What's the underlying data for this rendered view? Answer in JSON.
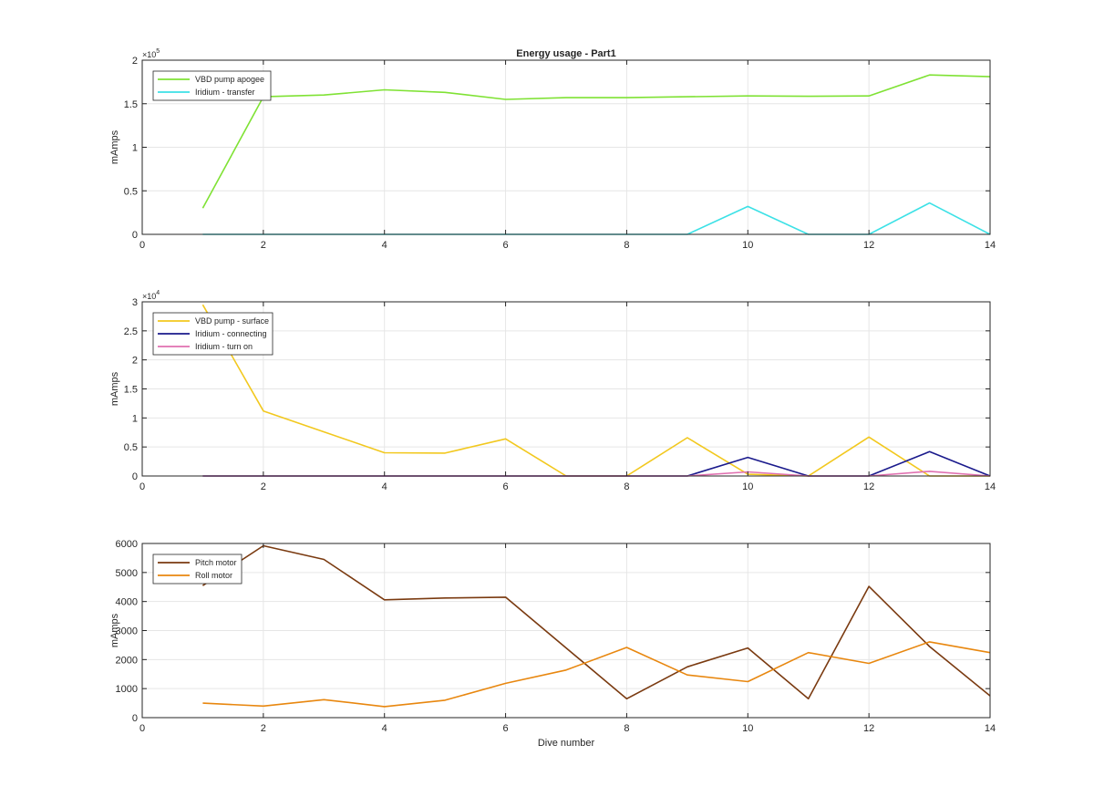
{
  "figure": {
    "title": "Energy usage - Part1",
    "xlabel": "Dive number"
  },
  "chart_data": [
    {
      "type": "line",
      "title": "Energy usage - Part1",
      "xlabel": "",
      "ylabel": "mAmps",
      "xlim": [
        0,
        14
      ],
      "ylim": [
        0,
        200000
      ],
      "xticks": [
        0,
        2,
        4,
        6,
        8,
        10,
        12,
        14
      ],
      "yticks": [
        0,
        50000,
        100000,
        150000,
        200000
      ],
      "ytick_labels": [
        "0",
        "0.5",
        "1",
        "1.5",
        "2"
      ],
      "exponent_label": "×10",
      "exponent_power": "5",
      "grid": true,
      "legend_position": "top-left",
      "x": [
        1,
        2,
        3,
        4,
        5,
        6,
        7,
        8,
        9,
        10,
        11,
        12,
        13,
        14
      ],
      "series": [
        {
          "name": "VBD pump apogee",
          "color": "#7FE234",
          "values": [
            30000,
            158000,
            160000,
            166000,
            163000,
            155000,
            157000,
            157000,
            158000,
            159000,
            158500,
            159000,
            183000,
            181000
          ]
        },
        {
          "name": "Iridium - transfer",
          "color": "#3CE1E6",
          "values": [
            0,
            0,
            0,
            0,
            0,
            0,
            0,
            0,
            0,
            32000,
            0,
            0,
            36000,
            0
          ]
        }
      ]
    },
    {
      "type": "line",
      "title": "",
      "xlabel": "",
      "ylabel": "mAmps",
      "xlim": [
        0,
        14
      ],
      "ylim": [
        0,
        30000
      ],
      "xticks": [
        0,
        2,
        4,
        6,
        8,
        10,
        12,
        14
      ],
      "yticks": [
        0,
        5000,
        10000,
        15000,
        20000,
        25000,
        30000
      ],
      "ytick_labels": [
        "0",
        "0.5",
        "1",
        "1.5",
        "2",
        "2.5",
        "3"
      ],
      "exponent_label": "×10",
      "exponent_power": "4",
      "grid": true,
      "legend_position": "top-left",
      "x": [
        1,
        2,
        3,
        4,
        5,
        6,
        7,
        8,
        9,
        10,
        11,
        12,
        13,
        14
      ],
      "series": [
        {
          "name": "VBD pump - surface",
          "color": "#F2C81E",
          "values": [
            29500,
            11200,
            7600,
            4000,
            3950,
            6400,
            0,
            0,
            6600,
            300,
            0,
            6700,
            0,
            0
          ]
        },
        {
          "name": "Iridium - connecting",
          "color": "#1A1A8C",
          "values": [
            0,
            0,
            0,
            0,
            0,
            0,
            0,
            0,
            0,
            3200,
            0,
            0,
            4200,
            0
          ]
        },
        {
          "name": "Iridium - turn on",
          "color": "#E070B0",
          "values": [
            0,
            0,
            0,
            0,
            0,
            0,
            0,
            0,
            0,
            700,
            0,
            0,
            800,
            0
          ]
        }
      ]
    },
    {
      "type": "line",
      "title": "",
      "xlabel": "Dive number",
      "ylabel": "mAmps",
      "xlim": [
        0,
        14
      ],
      "ylim": [
        0,
        6000
      ],
      "xticks": [
        0,
        2,
        4,
        6,
        8,
        10,
        12,
        14
      ],
      "yticks": [
        0,
        1000,
        2000,
        3000,
        4000,
        5000,
        6000
      ],
      "ytick_labels": [
        "0",
        "1000",
        "2000",
        "3000",
        "4000",
        "5000",
        "6000"
      ],
      "exponent_label": "",
      "exponent_power": "",
      "grid": true,
      "legend_position": "top-left",
      "x": [
        1,
        2,
        3,
        4,
        5,
        6,
        7,
        8,
        9,
        10,
        11,
        12,
        13,
        14
      ],
      "series": [
        {
          "name": "Pitch motor",
          "color": "#7A3A10",
          "values": [
            4550,
            5920,
            5450,
            4060,
            4120,
            4150,
            2400,
            650,
            1750,
            2400,
            650,
            4520,
            2450,
            750
          ]
        },
        {
          "name": "Roll motor",
          "color": "#E8870F",
          "values": [
            500,
            400,
            620,
            380,
            600,
            1180,
            1640,
            2420,
            1470,
            1240,
            2240,
            1870,
            2610,
            2240
          ]
        }
      ]
    }
  ]
}
